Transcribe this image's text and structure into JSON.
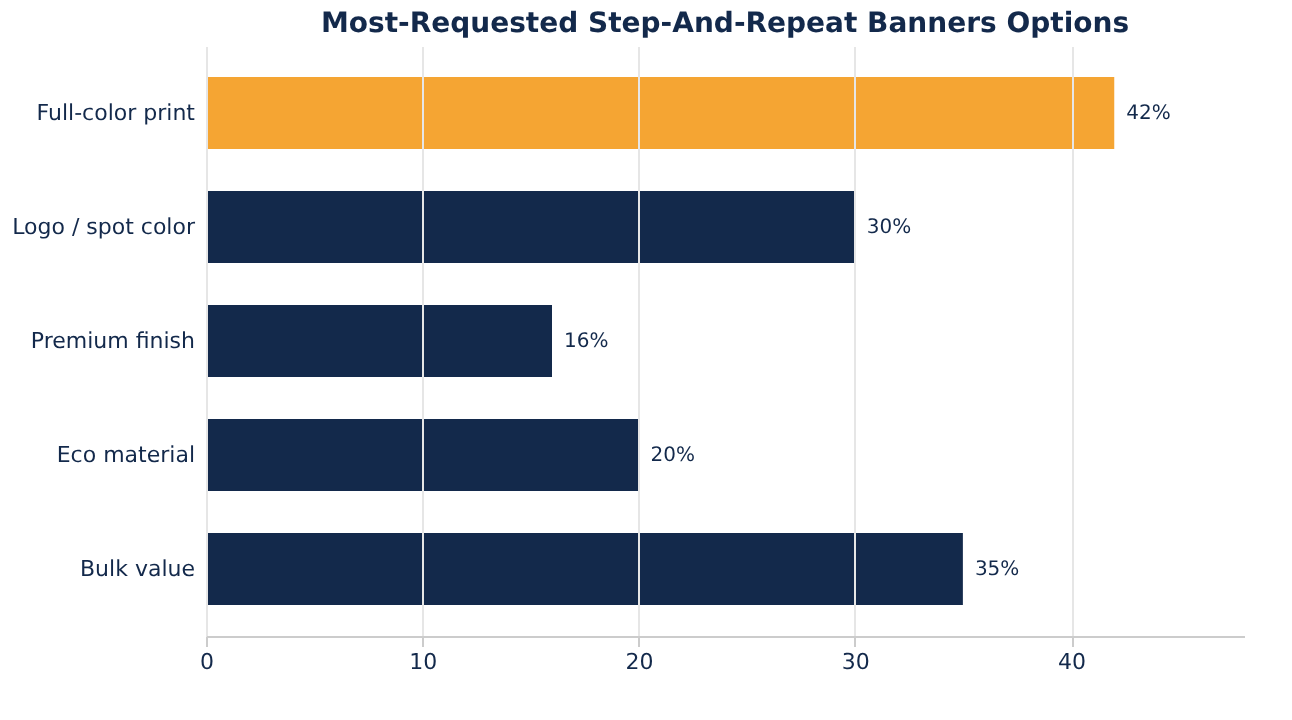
{
  "chart_data": {
    "type": "bar",
    "orientation": "horizontal",
    "title": "Most-Requested Step-And-Repeat Banners Options",
    "categories": [
      "Full-color print",
      "Logo / spot color",
      "Premium finish",
      "Eco material",
      "Bulk value"
    ],
    "values": [
      42,
      30,
      16,
      20,
      35
    ],
    "colors": [
      "#f5a533",
      "#13294b",
      "#13294b",
      "#13294b",
      "#13294b"
    ],
    "value_labels": [
      "42%",
      "30%",
      "16%",
      "20%",
      "35%"
    ],
    "xlim": [
      0,
      48
    ],
    "xticks": [
      0,
      10,
      20,
      30,
      40
    ],
    "grid": "x"
  }
}
